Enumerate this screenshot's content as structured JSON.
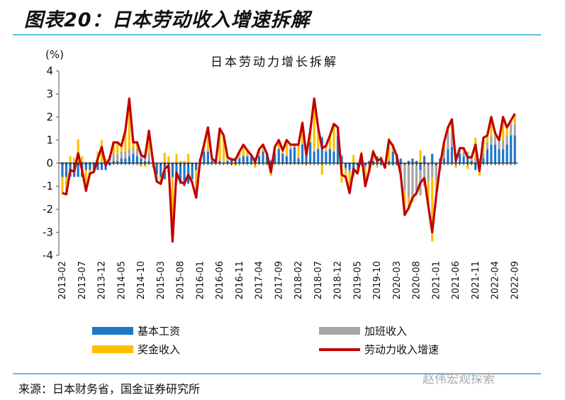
{
  "figure_title": "图表20：日本劳动收入增速拆解",
  "source": "来源：日本财务省，国金证券研究所",
  "watermark": "赵伟宏观探索",
  "colors": {
    "base_wage": "#1f77c8",
    "overtime": "#a6a6a6",
    "bonus": "#ffc000",
    "total": "#c00000",
    "rule": "#5bc0e8"
  },
  "chart_data": {
    "type": "bar+line",
    "title": "日本劳动力增长拆解",
    "ylabel": "(%)",
    "ylim": [
      -4,
      4
    ],
    "yticks": [
      4,
      3,
      2,
      1,
      0,
      -1,
      -2,
      -3,
      -4
    ],
    "x_range": [
      "2013-02",
      "2022-09"
    ],
    "frequency": "monthly",
    "xtick_labels": [
      "2013-02",
      "2013-07",
      "2013-12",
      "2014-05",
      "2014-10",
      "2015-03",
      "2015-08",
      "2016-01",
      "2016-06",
      "2016-11",
      "2017-04",
      "2017-09",
      "2018-02",
      "2018-07",
      "2018-12",
      "2019-05",
      "2019-10",
      "2020-03",
      "2020-08",
      "2021-01",
      "2021-06",
      "2021-11",
      "2022-04",
      "2022-09"
    ],
    "legend_position": "bottom",
    "series": [
      {
        "name": "基本工资",
        "type": "stacked-bar",
        "color_key": "base_wage",
        "values": [
          -0.6,
          -0.6,
          -0.6,
          -0.6,
          -0.6,
          -0.6,
          -0.3,
          -0.3,
          -0.3,
          -0.3,
          -0.3,
          -0.3,
          -0.1,
          0.1,
          0.1,
          0.2,
          0.2,
          0.3,
          0.4,
          0.3,
          0.2,
          0.1,
          0.1,
          0.0,
          -0.5,
          -0.6,
          -0.7,
          -0.4,
          -0.6,
          -0.8,
          -0.9,
          -1.0,
          -0.9,
          -0.7,
          -0.3,
          0.2,
          0.5,
          0.5,
          0.1,
          0.0,
          0.1,
          0.0,
          0.1,
          0.2,
          0.2,
          0.2,
          0.3,
          0.3,
          0.3,
          0.2,
          0.3,
          0.5,
          0.4,
          0.1,
          0.4,
          0.6,
          0.4,
          0.3,
          0.6,
          0.7,
          0.2,
          0.8,
          0.4,
          0.9,
          0.5,
          0.6,
          1.1,
          0.5,
          0.6,
          0.5,
          1.2,
          0.3,
          -0.2,
          -0.3,
          -0.5,
          -0.1,
          0.2,
          -0.1,
          0.1,
          0.1,
          0.3,
          0.2,
          -0.1,
          0.1,
          0.5,
          0.4,
          0.2,
          0.0,
          0.1,
          0.2,
          0.1,
          -0.3,
          0.3,
          0.0,
          0.4,
          -0.1,
          0.2,
          0.2,
          0.6,
          0.7,
          0.1,
          0.4,
          0.3,
          0.3,
          0.1,
          -0.3,
          -0.1,
          0.2,
          0.6,
          0.8,
          0.8,
          0.6,
          0.6,
          0.8,
          1.2,
          1.2
        ]
      },
      {
        "name": "加班收入",
        "type": "stacked-bar",
        "color_key": "overtime",
        "values": [
          0.05,
          0.05,
          0.05,
          0.05,
          0.05,
          0.05,
          0.05,
          0.05,
          0.05,
          0.05,
          0.05,
          0.05,
          0.3,
          0.3,
          0.3,
          0.3,
          0.3,
          0.3,
          0.3,
          0.3,
          0.3,
          0.3,
          0.3,
          0.3,
          0,
          0,
          0,
          0,
          0,
          0,
          0,
          0,
          0,
          0,
          0,
          0,
          0.05,
          0.05,
          0.05,
          0.05,
          0.05,
          0.05,
          0.05,
          0.05,
          0.05,
          0.05,
          0.05,
          0.05,
          0.05,
          0.05,
          0.05,
          0.05,
          0.05,
          0.05,
          0.05,
          0.05,
          0.05,
          0.05,
          0.05,
          0.05,
          0.05,
          0.05,
          0.05,
          0.05,
          0.05,
          0.05,
          0.05,
          0.05,
          0.05,
          0.05,
          0.05,
          0.05,
          -0.1,
          -0.1,
          -0.1,
          -0.1,
          -0.1,
          -0.1,
          -0.1,
          -0.1,
          -0.1,
          -0.1,
          -0.1,
          -0.1,
          -0.1,
          -0.1,
          -0.5,
          -1.2,
          -1.5,
          -1.4,
          -1.2,
          -1.1,
          -1.0,
          -0.8,
          -0.6,
          -0.6,
          -0.3,
          0.4,
          0.8,
          0.6,
          0.2,
          0.2,
          0.2,
          0.2,
          0.2,
          0.2,
          0.2,
          0.2,
          0.3,
          0.4,
          0.4,
          0.4,
          0.4,
          0.4,
          0.5,
          0.5
        ]
      },
      {
        "name": "奖金收入",
        "type": "stacked-bar",
        "color_key": "bonus",
        "values": [
          -0.75,
          -0.8,
          0.25,
          0.18,
          0.98,
          0.25,
          -0.95,
          -0.2,
          -0.13,
          0.45,
          0.95,
          0.15,
          0.0,
          0.5,
          0.5,
          0.25,
          0.9,
          2.2,
          0.2,
          0.3,
          -0.15,
          -0.15,
          1.0,
          -0.2,
          -0.3,
          -0.3,
          0.45,
          0.3,
          -2.8,
          0.4,
          0.1,
          0.1,
          0.4,
          -0.15,
          -1.2,
          -0.1,
          0.25,
          1.0,
          0.05,
          0.0,
          1.35,
          1.15,
          0.1,
          -0.1,
          -0.1,
          0.25,
          0.45,
          0.2,
          0.0,
          -0.2,
          0.25,
          0.25,
          -0.05,
          -0.55,
          0.25,
          0.35,
          0.1,
          0.65,
          0.15,
          0.05,
          0.55,
          0.9,
          -0.1,
          0.45,
          2.25,
          0.9,
          -0.5,
          0.2,
          0.55,
          1.15,
          0.3,
          -0.85,
          -0.3,
          -0.9,
          0.35,
          -0.25,
          0.3,
          -0.8,
          -0.3,
          0.5,
          -0.1,
          0.1,
          0.0,
          1.0,
          0.35,
          0.0,
          -0.2,
          -1.05,
          -0.55,
          -0.3,
          -0.2,
          0.55,
          0.05,
          -1.05,
          -2.8,
          -0.75,
          0.0,
          0.3,
          0.15,
          0.6,
          -0.2,
          0.05,
          0.15,
          -0.25,
          -0.05,
          0.9,
          -0.45,
          0.7,
          0.3,
          0.8,
          0.1,
          0.0,
          1.0,
          0.35,
          0.15,
          0.45
        ]
      },
      {
        "name": "劳动力收入增速",
        "type": "line",
        "color_key": "total",
        "values": [
          -1.3,
          -1.35,
          -0.3,
          -0.37,
          0.43,
          -0.3,
          -1.2,
          -0.45,
          -0.38,
          0.2,
          0.7,
          -0.1,
          0.2,
          0.9,
          0.9,
          0.75,
          1.4,
          2.8,
          0.9,
          0.9,
          0.35,
          0.25,
          1.4,
          0.1,
          -0.8,
          -0.9,
          -0.25,
          -0.1,
          -3.4,
          -0.4,
          -0.8,
          -0.9,
          -0.5,
          -0.85,
          -1.5,
          0.1,
          0.8,
          1.55,
          0.2,
          0.05,
          1.5,
          1.2,
          0.25,
          0.15,
          0.15,
          0.5,
          0.8,
          0.55,
          0.35,
          0.05,
          0.6,
          0.8,
          0.4,
          -0.4,
          0.7,
          1.0,
          0.55,
          1.0,
          0.8,
          0.8,
          0.8,
          1.75,
          0.35,
          1.4,
          2.8,
          1.55,
          0.65,
          0.75,
          1.2,
          1.7,
          1.55,
          -0.5,
          -0.6,
          -1.3,
          -0.25,
          -0.45,
          0.4,
          -1.0,
          -0.3,
          0.5,
          0.1,
          0.2,
          -0.2,
          1.0,
          0.75,
          0.3,
          -0.5,
          -2.25,
          -1.95,
          -1.5,
          -1.3,
          -0.85,
          -0.65,
          -1.85,
          -3.0,
          -1.45,
          -0.1,
          0.9,
          1.55,
          1.9,
          0.1,
          0.65,
          0.65,
          0.25,
          0.25,
          0.8,
          -0.35,
          1.1,
          1.2,
          2.0,
          1.3,
          1.0,
          2.0,
          1.55,
          1.85,
          2.15
        ]
      }
    ]
  }
}
